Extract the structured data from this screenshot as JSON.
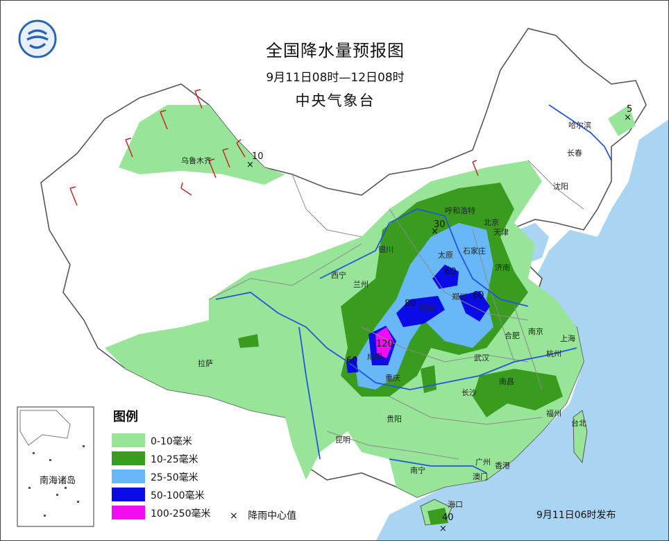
{
  "header": {
    "title": "全国降水量预报图",
    "period": "9月11日08时—12日08时",
    "issuer": "中央气象台"
  },
  "legend": {
    "title": "图例",
    "classes": [
      {
        "label": "0-10毫米",
        "color": "#98e59a"
      },
      {
        "label": "10-25毫米",
        "color": "#3a9c1e"
      },
      {
        "label": "25-50毫米",
        "color": "#68b8f8"
      },
      {
        "label": "50-100毫米",
        "color": "#0b0be8"
      },
      {
        "label": "100-250毫米",
        "color": "#f20cf2"
      }
    ],
    "center_marker": "×",
    "center_label": "降雨中心值"
  },
  "inset_label": "南海诸岛",
  "issue_time": "9月11日06时发布",
  "cities": [
    "乌鲁木齐",
    "哈尔滨",
    "长春",
    "沈阳",
    "呼和浩特",
    "北京",
    "天津",
    "石家庄",
    "太原",
    "济南",
    "郑州",
    "银川",
    "西宁",
    "兰州",
    "西安",
    "合肥",
    "南京",
    "上海",
    "杭州",
    "武汉",
    "成都",
    "重庆",
    "长沙",
    "南昌",
    "福州",
    "台北",
    "拉萨",
    "贵阳",
    "昆明",
    "南宁",
    "广州",
    "香港",
    "澳门",
    "海口"
  ],
  "rain_centers": [
    "10",
    "5",
    "30",
    "60",
    "60",
    "80",
    "120",
    "60",
    "40"
  ],
  "colors": {
    "sea": "#a9d5f2",
    "border": "#777777",
    "river": "#2255dd",
    "wind": "#cc2222"
  }
}
